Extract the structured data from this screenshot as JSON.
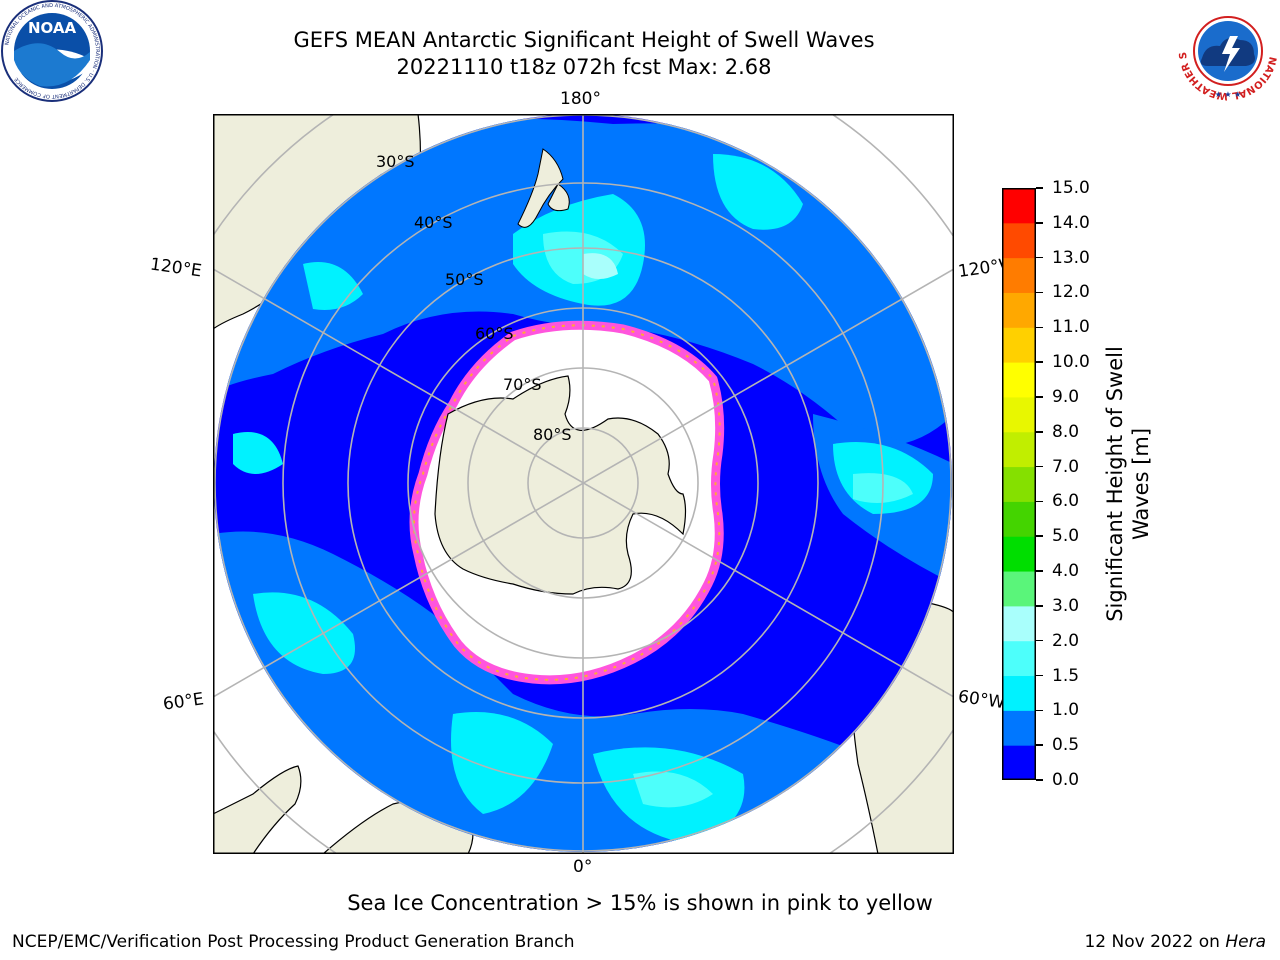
{
  "header": {
    "title_line1": "GEFS MEAN Antarctic Significant Height of Swell Waves",
    "title_line2": "20221110 t18z 072h fcst   Max: 2.68"
  },
  "map": {
    "projection": "south-polar-stereographic",
    "longitude_labels": {
      "top": "180°",
      "bottom": "0°",
      "left_upper": "120°E",
      "left_lower": "60°E",
      "right_upper": "120°W",
      "right_lower": "60°W"
    },
    "latitude_labels": [
      "30°S",
      "40°S",
      "50°S",
      "60°S",
      "70°S",
      "80°S"
    ],
    "colors": {
      "land": "#eeeedc",
      "sea_ice": "#ffffff",
      "graticule": "#b4b4b4",
      "ice_edge_pink": "#ff55dd",
      "ice_edge_orange": "#ffaa33"
    }
  },
  "colorbar": {
    "label_line1": "Significant Height of Swell",
    "label_line2": "Waves [m]",
    "ticks": [
      "0.0",
      "0.5",
      "1.0",
      "1.5",
      "2.0",
      "3.0",
      "4.0",
      "5.0",
      "6.0",
      "7.0",
      "8.0",
      "9.0",
      "10.0",
      "11.0",
      "12.0",
      "13.0",
      "14.0",
      "15.0"
    ],
    "colors": [
      "#0000ff",
      "#0077ff",
      "#00f2ff",
      "#4dfffb",
      "#a9fffc",
      "#5af57a",
      "#00de00",
      "#44d400",
      "#85e000",
      "#c1ee00",
      "#e8f700",
      "#ffff00",
      "#ffd000",
      "#ffa800",
      "#ff7c00",
      "#ff4a00",
      "#ff0000"
    ]
  },
  "footnote": "Sea Ice Concentration > 15% is shown in pink to yellow",
  "footer": {
    "branch": "NCEP/EMC/Verification Post Processing Product Generation Branch",
    "date": "12 Nov 2022 on",
    "host": "Hera"
  },
  "logos": {
    "noaa": {
      "text": "NOAA",
      "ring_text": "NATIONAL OCEANIC AND ATMOSPHERIC ADMINISTRATION · U.S. DEPARTMENT OF COMMERCE"
    },
    "nws": {
      "ring_text": "NATIONAL WEATHER SERVICE"
    }
  }
}
